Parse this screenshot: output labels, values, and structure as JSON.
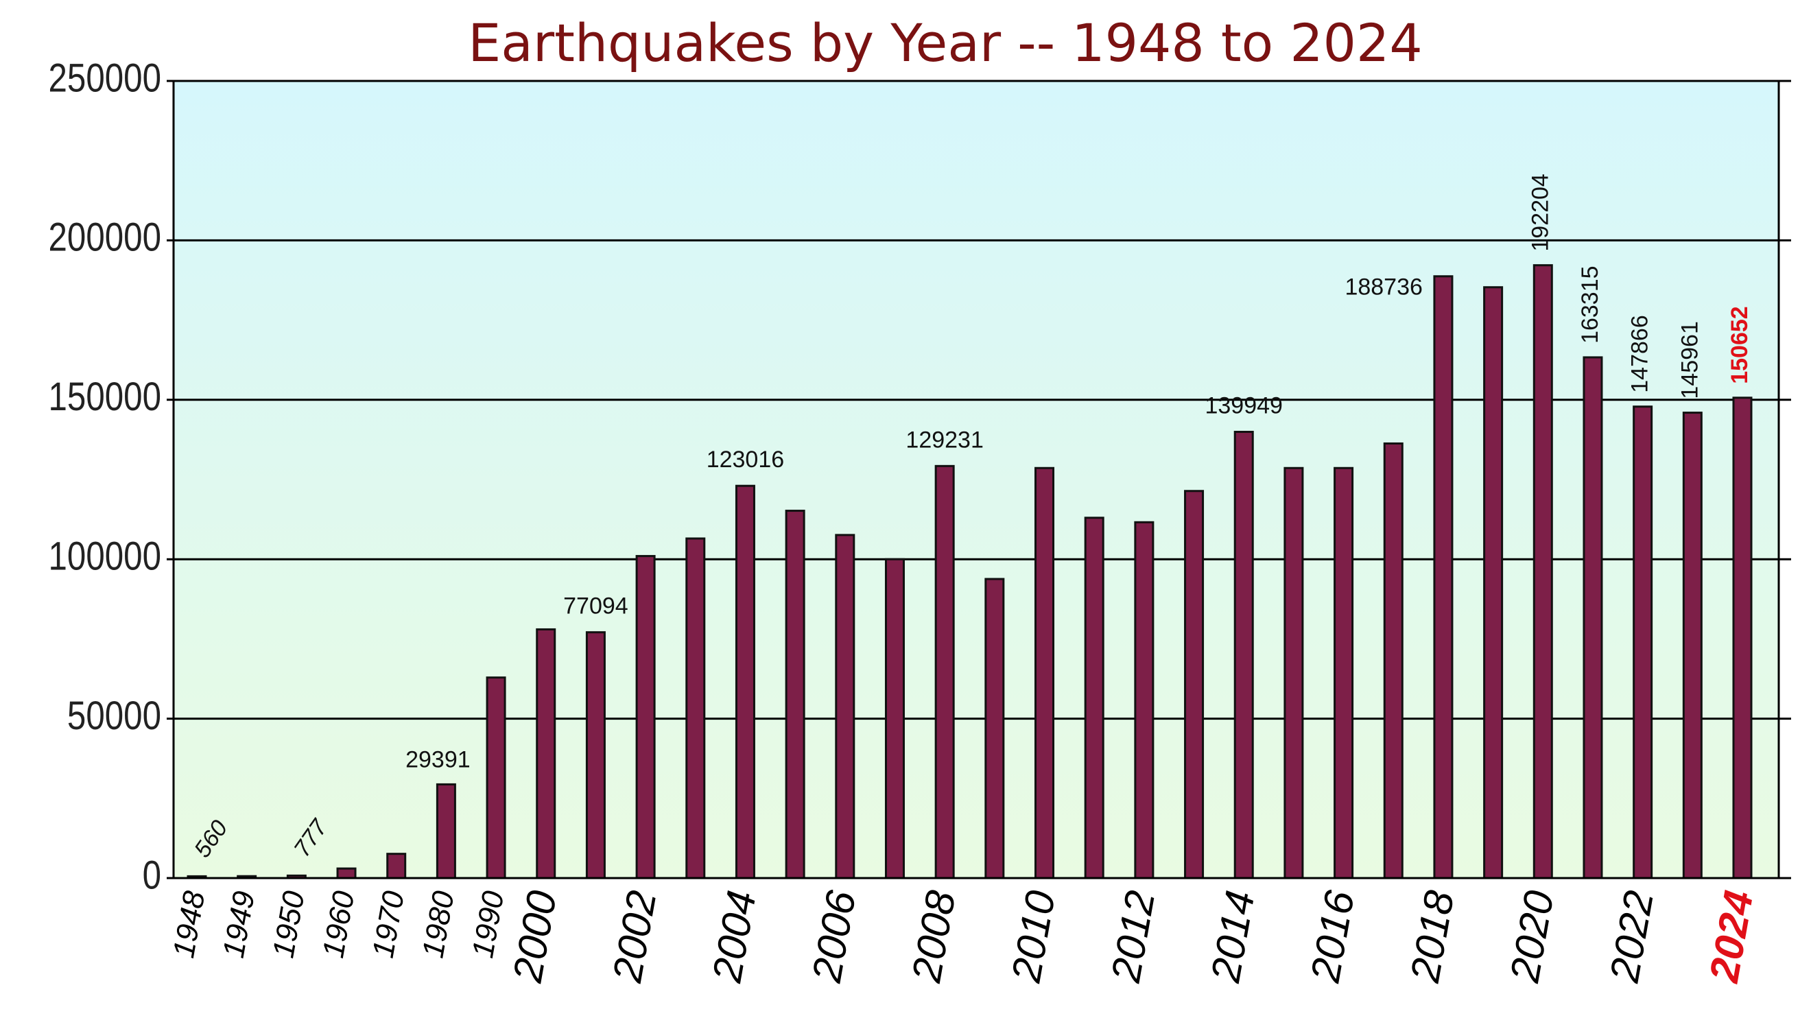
{
  "chart_data": {
    "type": "bar",
    "title": "Earthquakes by Year -- 1948 to 2024",
    "categories": [
      "1948",
      "1949",
      "1950",
      "1960",
      "1970",
      "1980",
      "1990",
      "2000",
      null,
      "2002",
      null,
      "2004",
      null,
      "2006",
      null,
      "2008",
      null,
      "2010",
      null,
      "2012",
      null,
      "2014",
      null,
      "2016",
      null,
      "2018",
      null,
      "2020",
      null,
      "2022",
      null,
      "2024"
    ],
    "values": [
      560,
      600,
      777,
      3000,
      7600,
      29391,
      62900,
      78000,
      77094,
      101000,
      106500,
      123016,
      115200,
      107600,
      100000,
      129231,
      93800,
      128600,
      113000,
      111600,
      121400,
      139949,
      128600,
      128600,
      136300,
      188736,
      185300,
      192204,
      163315,
      147866,
      145961,
      150652
    ],
    "show_value": [
      true,
      false,
      true,
      false,
      false,
      true,
      false,
      false,
      true,
      false,
      false,
      true,
      false,
      false,
      false,
      true,
      false,
      false,
      false,
      false,
      false,
      true,
      false,
      false,
      false,
      true,
      false,
      true,
      true,
      true,
      true,
      true
    ],
    "color": "#7d1f48",
    "highlight_color": "#e01018",
    "title_color": "#7a1212",
    "ylim": [
      0,
      250000
    ],
    "yticks": [
      0,
      50000,
      100000,
      150000,
      200000,
      250000
    ],
    "grid": true
  }
}
